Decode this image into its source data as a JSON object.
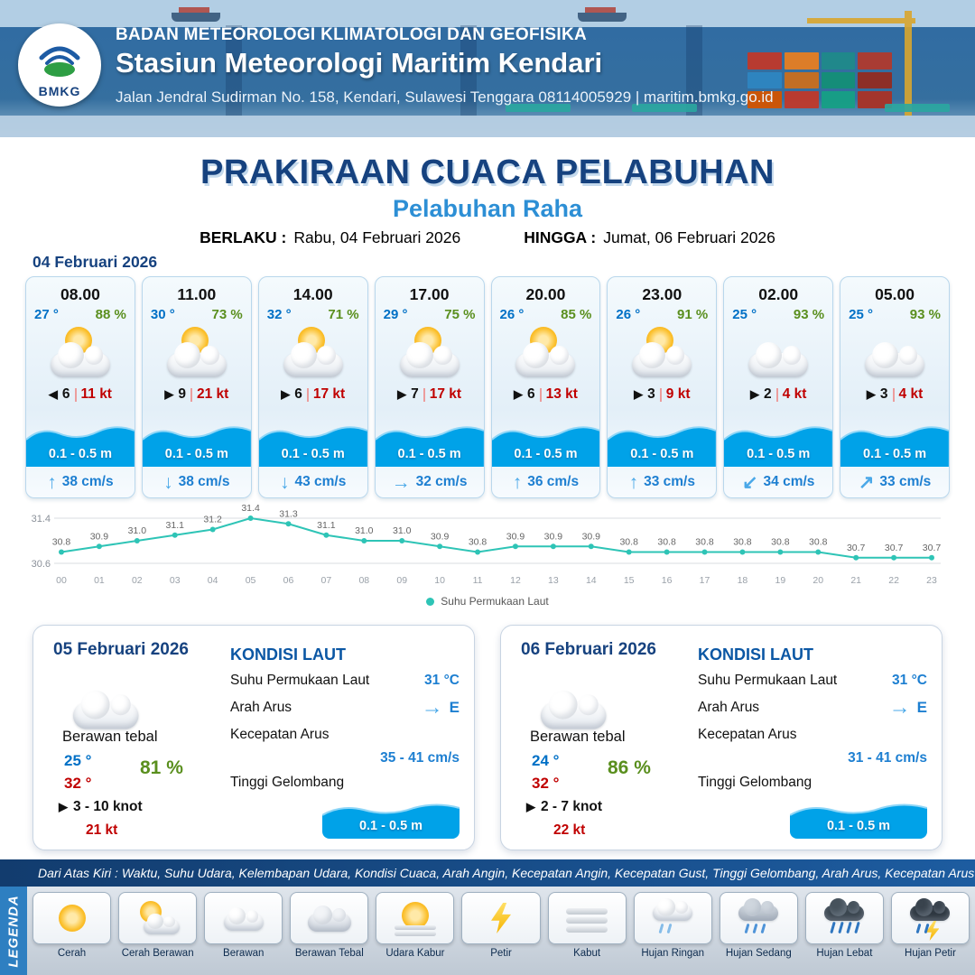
{
  "colors": {
    "header_blue": "#2f6ba4",
    "navy": "#16427f",
    "port_blue": "#2d8fd5",
    "temp_blue": "#0070c6",
    "humidity_green": "#5a8f1e",
    "gust_red": "#c00000",
    "wave_blue": "#00a2e8",
    "current_blue": "#4aa8e8",
    "value_blue": "#1d7fd1",
    "chart_teal": "#2ec4b6"
  },
  "header": {
    "logo": "BMKG",
    "org": "BADAN METEOROLOGI KLIMATOLOGI DAN GEOFISIKA",
    "station": "Stasiun Meteorologi Maritim Kendari",
    "address": "Jalan Jendral Sudirman No. 158, Kendari, Sulawesi Tenggara  08114005929 | maritim.bmkg.go.id"
  },
  "title": {
    "main": "PRAKIRAAN CUACA PELABUHAN",
    "port": "Pelabuhan Raha",
    "berlaku_label": "BERLAKU :",
    "berlaku": "Rabu, 04 Februari 2026",
    "hingga_label": "HINGGA :",
    "hingga": "Jumat, 06 Februari 2026"
  },
  "day1": {
    "date": "04 Februari 2026",
    "slots": [
      {
        "time": "08.00",
        "temp": "27 °",
        "rh": "88 %",
        "icon": "cerah-berawan",
        "wind_arrow": "◀",
        "wind": "6",
        "gust": "11 kt",
        "wave": "0.1 - 0.5 m",
        "current_arrow": "↑",
        "current": "38 cm/s"
      },
      {
        "time": "11.00",
        "temp": "30 °",
        "rh": "73 %",
        "icon": "cerah-berawan",
        "wind_arrow": "▶",
        "wind": "9",
        "gust": "21 kt",
        "wave": "0.1 - 0.5 m",
        "current_arrow": "↓",
        "current": "38 cm/s"
      },
      {
        "time": "14.00",
        "temp": "32 °",
        "rh": "71 %",
        "icon": "cerah-berawan",
        "wind_arrow": "▶",
        "wind": "6",
        "gust": "17 kt",
        "wave": "0.1 - 0.5 m",
        "current_arrow": "↓",
        "current": "43 cm/s"
      },
      {
        "time": "17.00",
        "temp": "29 °",
        "rh": "75 %",
        "icon": "cerah-berawan",
        "wind_arrow": "▶",
        "wind": "7",
        "gust": "17 kt",
        "wave": "0.1 - 0.5 m",
        "current_arrow": "→",
        "current": "32 cm/s"
      },
      {
        "time": "20.00",
        "temp": "26 °",
        "rh": "85 %",
        "icon": "cerah-berawan",
        "wind_arrow": "▶",
        "wind": "6",
        "gust": "13 kt",
        "wave": "0.1 - 0.5 m",
        "current_arrow": "↑",
        "current": "36 cm/s"
      },
      {
        "time": "23.00",
        "temp": "26 °",
        "rh": "91 %",
        "icon": "cerah-berawan",
        "wind_arrow": "▶",
        "wind": "3",
        "gust": "9 kt",
        "wave": "0.1 - 0.5 m",
        "current_arrow": "↑",
        "current": "33 cm/s"
      },
      {
        "time": "02.00",
        "temp": "25 °",
        "rh": "93 %",
        "icon": "berawan",
        "wind_arrow": "▶",
        "wind": "2",
        "gust": "4 kt",
        "wave": "0.1 - 0.5 m",
        "current_arrow": "↙",
        "current": "34 cm/s"
      },
      {
        "time": "05.00",
        "temp": "25 °",
        "rh": "93 %",
        "icon": "berawan",
        "wind_arrow": "▶",
        "wind": "3",
        "gust": "4 kt",
        "wave": "0.1 - 0.5 m",
        "current_arrow": "↗",
        "current": "33 cm/s"
      }
    ]
  },
  "chart_data": {
    "type": "line",
    "legend": "Suhu Permukaan Laut",
    "color": "#2ec4b6",
    "x": [
      "00",
      "01",
      "02",
      "03",
      "04",
      "05",
      "06",
      "07",
      "08",
      "09",
      "10",
      "11",
      "12",
      "13",
      "14",
      "15",
      "16",
      "17",
      "18",
      "19",
      "20",
      "21",
      "22",
      "23"
    ],
    "values": [
      30.8,
      30.9,
      31.0,
      31.1,
      31.2,
      31.4,
      31.3,
      31.1,
      31.0,
      31.0,
      30.9,
      30.8,
      30.9,
      30.9,
      30.9,
      30.8,
      30.8,
      30.8,
      30.8,
      30.8,
      30.8,
      30.7,
      30.7,
      30.7
    ],
    "ylim": [
      30.6,
      31.4
    ],
    "xlabel": "",
    "ylabel": ""
  },
  "days": [
    {
      "date": "05 Februari 2026",
      "cond": "Berawan tebal",
      "tmin": "25 °",
      "tmax": "32 °",
      "rh": "81 %",
      "wind_arrow": "▶",
      "wind": "3  - 10 knot",
      "gust": "21 kt",
      "sea": {
        "title": "KONDISI LAUT",
        "sst_label": "Suhu Permukaan Laut",
        "sst": "31 °C",
        "arus_label": "Arah Arus",
        "arus_arrow": "→",
        "arus_dir": "E",
        "kec_label": "Kecepatan Arus",
        "kec": "35 - 41 cm/s",
        "wave_label": "Tinggi Gelombang",
        "wave": "0.1 - 0.5 m"
      }
    },
    {
      "date": "06 Februari 2026",
      "cond": "Berawan tebal",
      "tmin": "24 °",
      "tmax": "32 °",
      "rh": "86 %",
      "wind_arrow": "▶",
      "wind": "2  - 7 knot",
      "gust": "22 kt",
      "sea": {
        "title": "KONDISI LAUT",
        "sst_label": "Suhu Permukaan Laut",
        "sst": "31 °C",
        "arus_label": "Arah Arus",
        "arus_arrow": "→",
        "arus_dir": "E",
        "kec_label": "Kecepatan Arus",
        "kec": "31 - 41 cm/s",
        "wave_label": "Tinggi Gelombang",
        "wave": "0.1 - 0.5 m"
      }
    }
  ],
  "note": "Dari Atas Kiri : Waktu, Suhu Udara, Kelembapan Udara, Kondisi Cuaca, Arah Angin, Kecepatan Angin, Kecepatan Gust, Tinggi Gelombang, Arah Arus, Kecepatan Arus",
  "legend": {
    "title": "LEGENDA",
    "items": [
      {
        "label": "Cerah",
        "icon": "cerah"
      },
      {
        "label": "Cerah Berawan",
        "icon": "cerah-berawan"
      },
      {
        "label": "Berawan",
        "icon": "berawan"
      },
      {
        "label": "Berawan Tebal",
        "icon": "berawan-tebal"
      },
      {
        "label": "Udara Kabur",
        "icon": "udara-kabur"
      },
      {
        "label": "Petir",
        "icon": "petir"
      },
      {
        "label": "Kabut",
        "icon": "kabut"
      },
      {
        "label": "Hujan Ringan",
        "icon": "hujan-ringan"
      },
      {
        "label": "Hujan Sedang",
        "icon": "hujan-sedang"
      },
      {
        "label": "Hujan Lebat",
        "icon": "hujan-lebat"
      },
      {
        "label": "Hujan Petir",
        "icon": "hujan-petir"
      }
    ]
  }
}
